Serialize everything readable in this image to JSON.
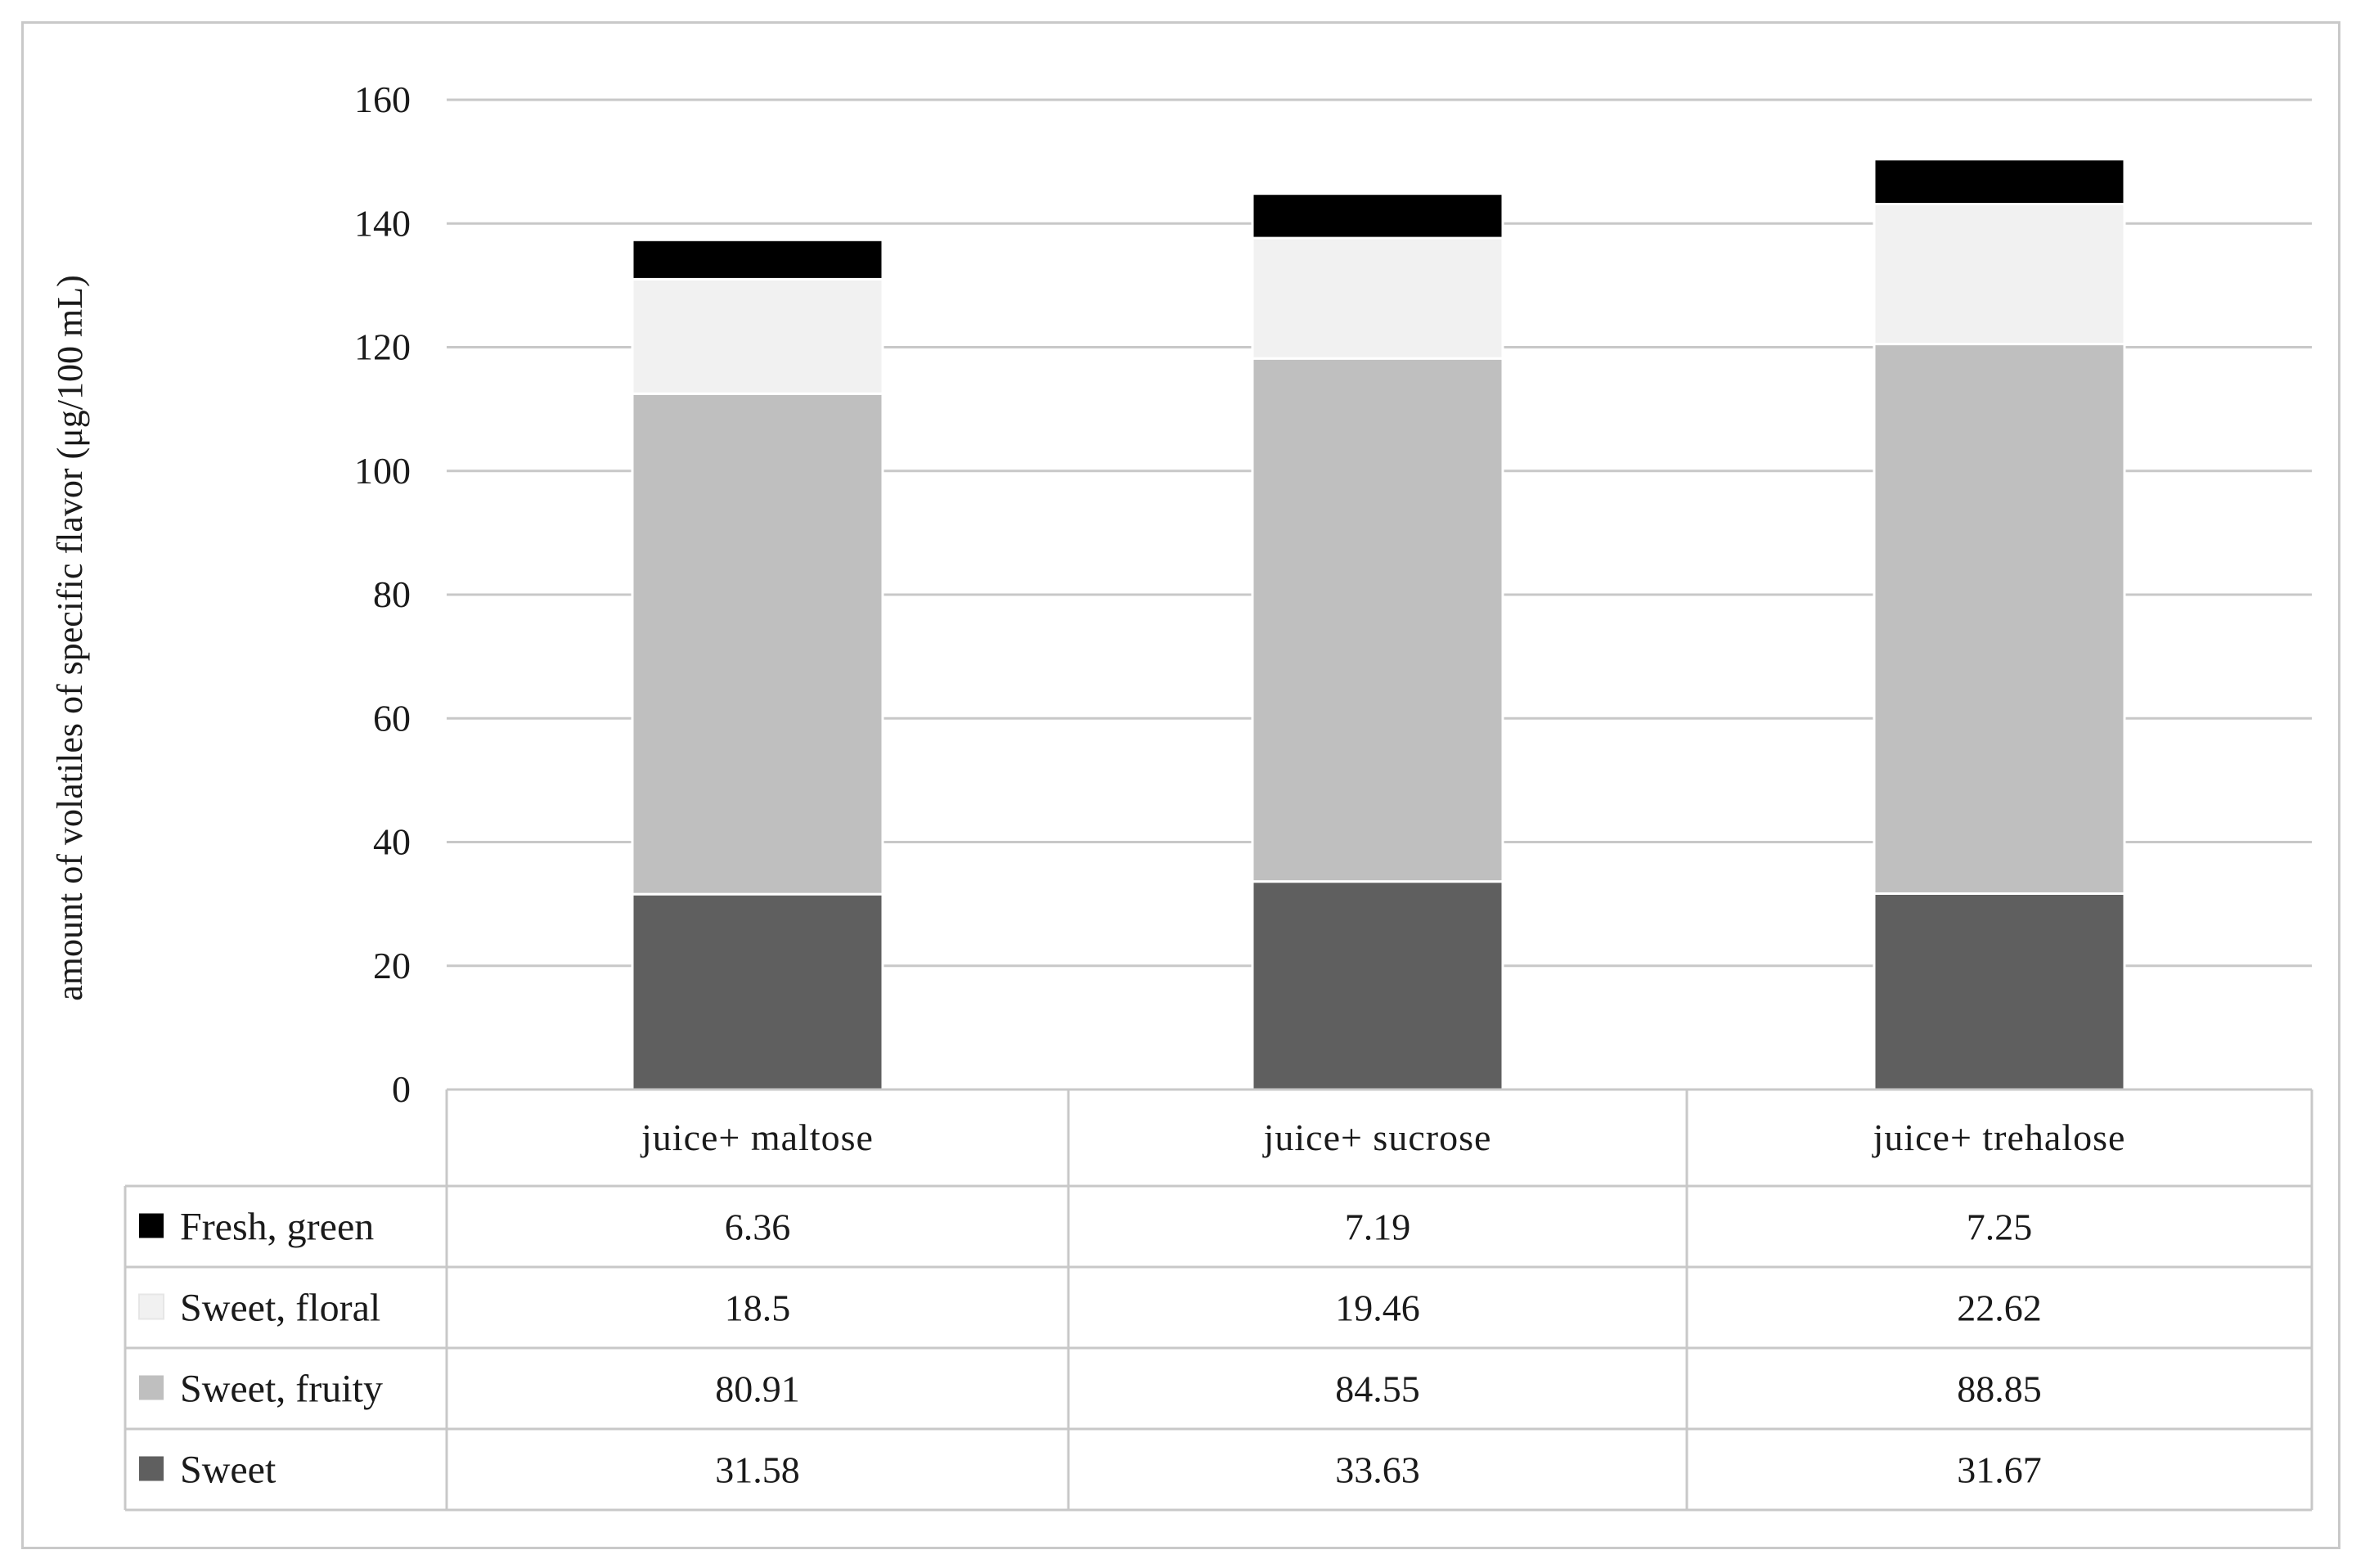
{
  "chart_data": {
    "type": "bar",
    "stacked": true,
    "categories": [
      "juice+ maltose",
      "juice+ sucrose",
      "juice+ trehalose"
    ],
    "series": [
      {
        "name": "Sweet",
        "values": [
          31.58,
          33.63,
          31.67
        ],
        "color": "#5f5f5f"
      },
      {
        "name": "Sweet, fruity",
        "values": [
          80.91,
          84.55,
          88.85
        ],
        "color": "#bfbfbf"
      },
      {
        "name": "Sweet, floral",
        "values": [
          18.5,
          19.46,
          22.62
        ],
        "color": "#f1f1f1"
      },
      {
        "name": "Fresh, green",
        "values": [
          6.36,
          7.19,
          7.25
        ],
        "color": "#000000"
      }
    ],
    "table_rows": [
      {
        "name": "Fresh, green",
        "values": [
          "6.36",
          "7.19",
          "7.25"
        ],
        "color": "#000000"
      },
      {
        "name": "Sweet, floral",
        "values": [
          "18.5",
          "19.46",
          "22.62"
        ],
        "color": "#f1f1f1"
      },
      {
        "name": "Sweet, fruity",
        "values": [
          "80.91",
          "84.55",
          "88.85"
        ],
        "color": "#bfbfbf"
      },
      {
        "name": "Sweet",
        "values": [
          "31.58",
          "33.63",
          "31.67"
        ],
        "color": "#5f5f5f"
      }
    ],
    "ylabel": "amount of volatiles of specific flavor (μg/100 mL)",
    "ylim": [
      0,
      160
    ],
    "yticks": [
      "0",
      "20",
      "40",
      "60",
      "80",
      "100",
      "120",
      "140",
      "160"
    ],
    "grid": true,
    "legend": "data table"
  }
}
